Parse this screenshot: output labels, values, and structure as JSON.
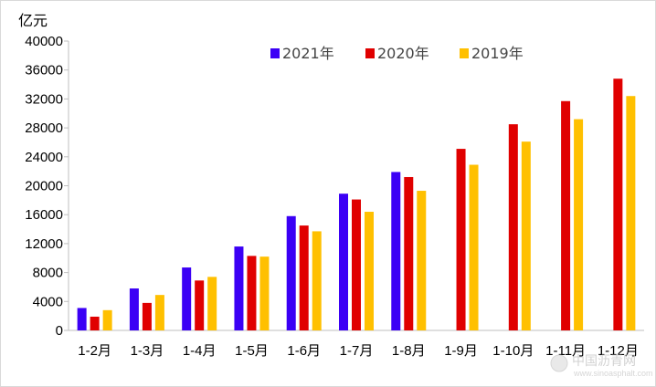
{
  "chart_data": {
    "type": "bar",
    "unit": "亿元",
    "categories": [
      "1-2月",
      "1-3月",
      "1-4月",
      "1-5月",
      "1-6月",
      "1-7月",
      "1-8月",
      "1-9月",
      "1-10月",
      "1-11月",
      "1-12月"
    ],
    "series": [
      {
        "name": "2021年",
        "color": "#3b00f5",
        "values": [
          3100,
          5800,
          8700,
          11600,
          15800,
          18900,
          21900,
          null,
          null,
          null,
          null
        ]
      },
      {
        "name": "2020年",
        "color": "#e00000",
        "values": [
          1900,
          3800,
          6900,
          10300,
          14500,
          18100,
          21200,
          25100,
          28500,
          31700,
          34800
        ]
      },
      {
        "name": "2019年",
        "color": "#ffc000",
        "values": [
          2800,
          4900,
          7400,
          10200,
          13700,
          16400,
          19300,
          22900,
          26100,
          29200,
          32400
        ]
      }
    ],
    "ylim": [
      0,
      40000
    ],
    "yticks": [
      0,
      4000,
      8000,
      12000,
      16000,
      20000,
      24000,
      28000,
      32000,
      36000,
      40000
    ],
    "legend_position": "top",
    "grid": false
  },
  "watermark": {
    "text": "中国沥青网",
    "url": "www.sinoasphalt.com"
  }
}
